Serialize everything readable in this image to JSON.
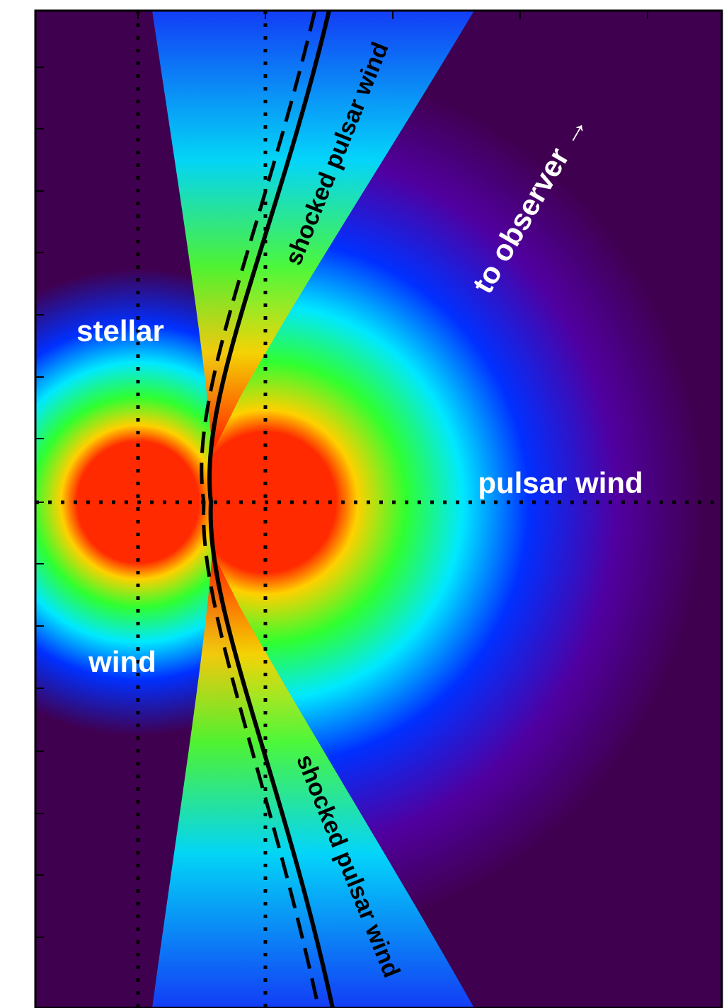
{
  "labels": {
    "stellar": "stellar",
    "wind": "wind",
    "pulsar_wind": "pulsar wind",
    "shocked_upper": "shocked pulsar wind",
    "shocked_lower": "shocked pulsar wind",
    "observer": "to observer →"
  }
}
